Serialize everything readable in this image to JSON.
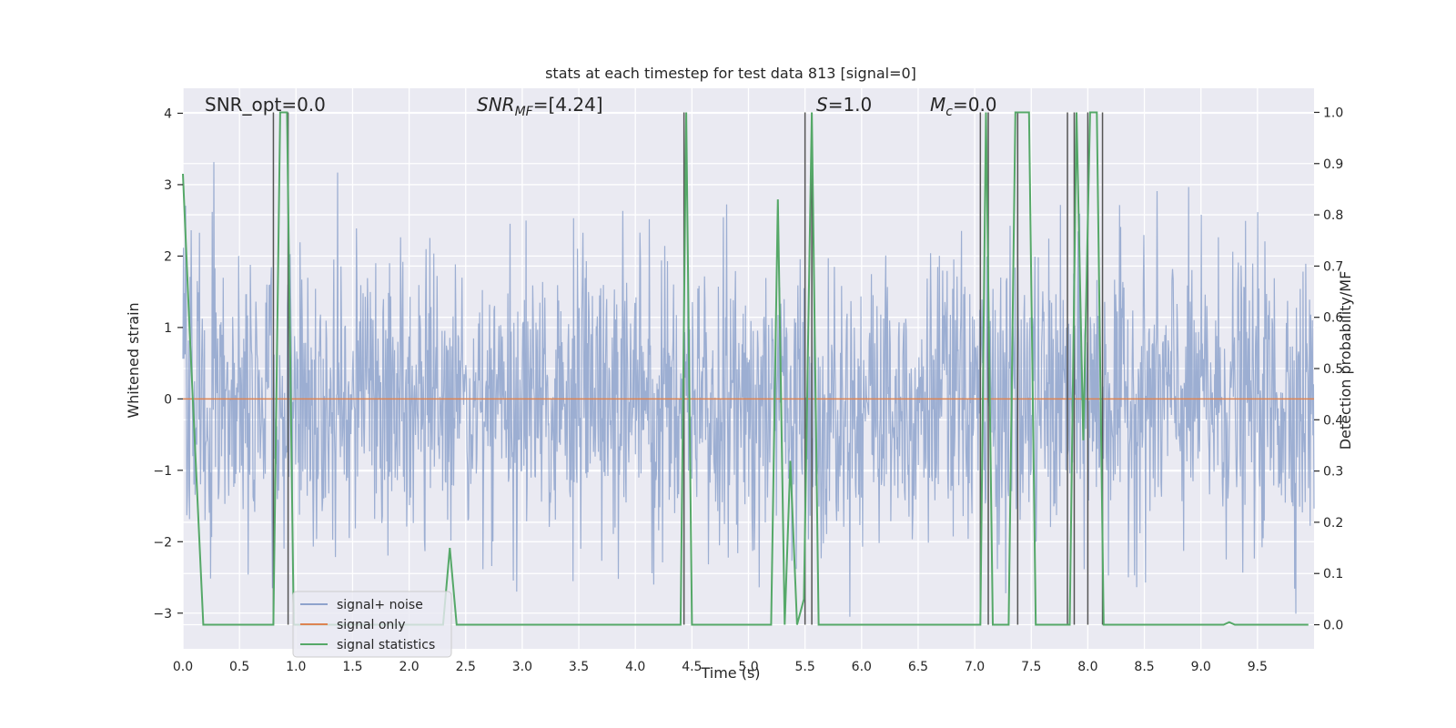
{
  "chart_data": {
    "type": "line",
    "title": "stats at each timestep for test data 813 [signal=0]",
    "xlabel": "Time (s)",
    "ylabel": "Whitened strain",
    "y2label": "Detection probability/MF",
    "xlim": [
      0,
      10
    ],
    "ylim": [
      -3.5,
      4.35
    ],
    "y2lim": [
      -0.047,
      1.047
    ],
    "xticks": [
      0.0,
      0.5,
      1.0,
      1.5,
      2.0,
      2.5,
      3.0,
      3.5,
      4.0,
      4.5,
      5.0,
      5.5,
      6.0,
      6.5,
      7.0,
      7.5,
      8.0,
      8.5,
      9.0,
      9.5
    ],
    "xtick_labels": [
      "0.0",
      "0.5",
      "1.0",
      "1.5",
      "2.0",
      "2.5",
      "3.0",
      "3.5",
      "4.0",
      "4.5",
      "5.0",
      "5.5",
      "6.0",
      "6.5",
      "7.0",
      "7.5",
      "8.0",
      "8.5",
      "9.0",
      "9.5"
    ],
    "yticks": [
      -3,
      -2,
      -1,
      0,
      1,
      2,
      3,
      4
    ],
    "ytick_labels": [
      "−3",
      "−2",
      "−1",
      "0",
      "1",
      "2",
      "3",
      "4"
    ],
    "y2ticks": [
      0.0,
      0.1,
      0.2,
      0.3,
      0.4,
      0.5,
      0.6,
      0.7,
      0.8,
      0.9,
      1.0
    ],
    "y2tick_labels": [
      "0.0",
      "0.1",
      "0.2",
      "0.3",
      "0.4",
      "0.5",
      "0.6",
      "0.7",
      "0.8",
      "0.9",
      "1.0"
    ],
    "grid": true,
    "legend_position": "lower-left",
    "annotations": {
      "snr_opt": "SNR_opt=0.0",
      "snr_mf_sym": "SNR",
      "snr_mf_sub": "MF",
      "snr_mf_val": "=[4.24]",
      "s_sym": "S",
      "s_val": "=1.0",
      "mc_sym": "M",
      "mc_sub": "c",
      "mc_val": "=0.0"
    },
    "series": [
      {
        "name": "signal+ noise",
        "color": "#8ea3cc",
        "axis": "left",
        "kind": "noise",
        "sample_count": 2048,
        "sigma": 1.0
      },
      {
        "name": "signal only",
        "color": "#dd8452",
        "axis": "left",
        "x": [
          0,
          10
        ],
        "y": [
          0,
          0
        ]
      },
      {
        "name": "signal statistics",
        "color": "#55a868",
        "axis": "right",
        "x": [
          0.0,
          0.06,
          0.18,
          0.3,
          0.5,
          0.74,
          0.8,
          0.86,
          0.92,
          0.98,
          1.04,
          1.1,
          2.3,
          2.36,
          2.42,
          2.48,
          4.4,
          4.45,
          4.5,
          4.56,
          5.2,
          5.26,
          5.32,
          5.37,
          5.43,
          5.49,
          5.56,
          5.62,
          5.7,
          7.05,
          7.1,
          7.16,
          7.3,
          7.36,
          7.48,
          7.54,
          7.62,
          7.8,
          7.84,
          7.9,
          7.96,
          8.02,
          8.08,
          8.14,
          8.2,
          8.26,
          9.2,
          9.25,
          9.3,
          9.95
        ],
        "y": [
          0.88,
          0.57,
          0.0,
          0.0,
          0.0,
          0.0,
          0.0,
          1.0,
          1.0,
          0.0,
          0.0,
          0.0,
          0.0,
          0.15,
          0.0,
          0.0,
          0.0,
          1.0,
          0.0,
          0.0,
          0.0,
          0.83,
          0.0,
          0.32,
          0.0,
          0.05,
          1.0,
          0.0,
          0.0,
          0.0,
          1.0,
          0.0,
          0.0,
          1.0,
          1.0,
          0.0,
          0.0,
          0.0,
          0.0,
          1.0,
          0.36,
          1.0,
          1.0,
          0.0,
          0.0,
          0.0,
          0.0,
          0.005,
          0.0,
          0.0
        ]
      }
    ],
    "vlines": {
      "color": "#555555",
      "x": [
        0.8,
        0.93,
        4.43,
        5.5,
        5.56,
        7.05,
        7.12,
        7.38,
        7.82,
        7.88,
        8.0,
        8.13
      ]
    }
  }
}
